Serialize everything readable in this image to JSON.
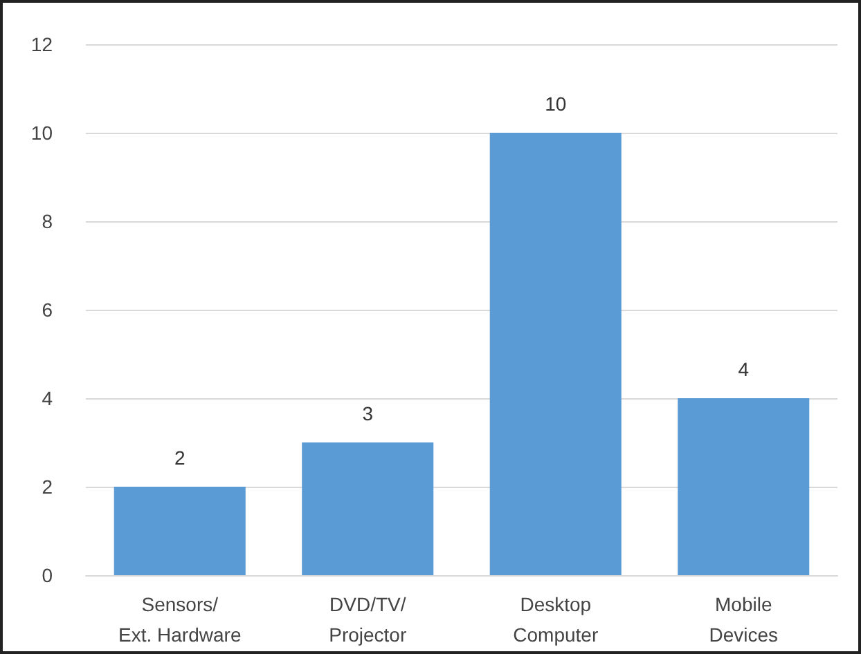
{
  "chart_data": {
    "type": "bar",
    "categories": [
      "Sensors/\nExt. Hardware",
      "DVD/TV/\nProjector",
      "Desktop\nComputer",
      "Mobile\nDevices"
    ],
    "values": [
      2,
      3,
      10,
      4
    ],
    "color": "#5b9bd5",
    "ylim": [
      0,
      12
    ],
    "yticks": [
      0,
      2,
      4,
      6,
      8,
      10,
      12
    ],
    "grid": "y",
    "data_labels": true
  }
}
